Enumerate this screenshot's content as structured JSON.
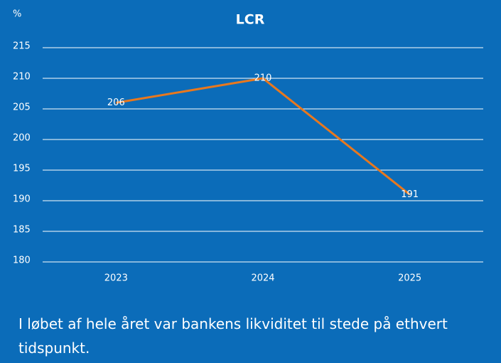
{
  "chart_data": {
    "type": "line",
    "title": "LCR",
    "y_label": "%",
    "categories": [
      "2023",
      "2024",
      "2025"
    ],
    "series": [
      {
        "name": "LCR",
        "color": "#e8781e",
        "values": [
          206,
          210,
          191
        ]
      }
    ],
    "ylim": [
      180,
      215
    ],
    "yticks": [
      180,
      185,
      190,
      195,
      200,
      205,
      210,
      215
    ],
    "grid": true
  },
  "caption": "I løbet af hele året var bankens likviditet til stede på ethvert tidspunkt."
}
